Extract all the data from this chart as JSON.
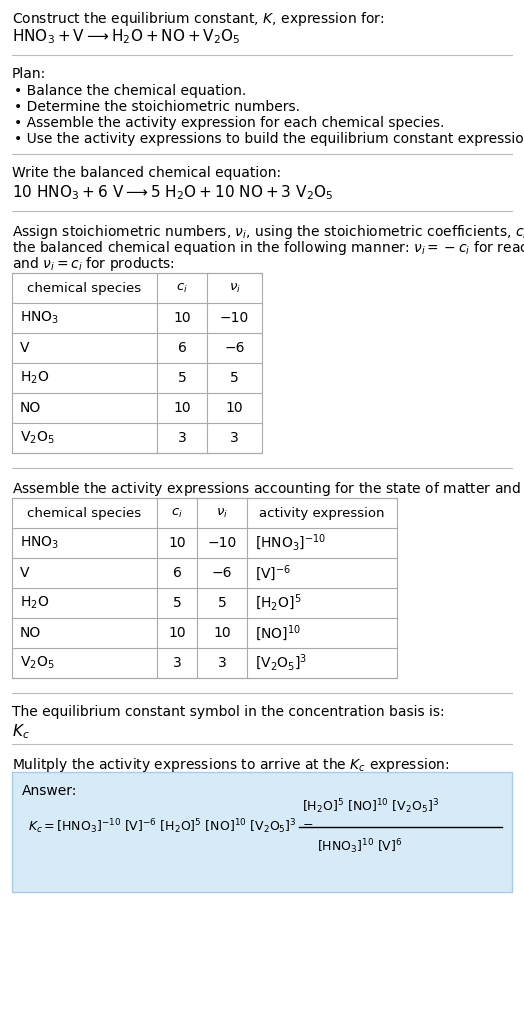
{
  "bg_color": "#ffffff",
  "table_border_color": "#aaaaaa",
  "answer_box_color": "#d6eaf8",
  "answer_box_border": "#a9cce3",
  "text_color": "#000000",
  "separator_color": "#bbbbbb",
  "title_line1": "Construct the equilibrium constant, $K$, expression for:",
  "table1_headers": [
    "chemical species",
    "$c_i$",
    "$\\nu_i$"
  ],
  "table1_rows": [
    [
      "$\\mathrm{HNO_3}$",
      "10",
      "−10"
    ],
    [
      "V",
      "6",
      "−6"
    ],
    [
      "$\\mathrm{H_2O}$",
      "5",
      "5"
    ],
    [
      "NO",
      "10",
      "10"
    ],
    [
      "$\\mathrm{V_2O_5}$",
      "3",
      "3"
    ]
  ],
  "table2_headers": [
    "chemical species",
    "$c_i$",
    "$\\nu_i$",
    "activity expression"
  ],
  "table2_rows": [
    [
      "$\\mathrm{HNO_3}$",
      "10",
      "−10",
      "$[\\mathrm{HNO_3}]^{-10}$"
    ],
    [
      "V",
      "6",
      "−6",
      "$[\\mathrm{V}]^{-6}$"
    ],
    [
      "$\\mathrm{H_2O}$",
      "5",
      "5",
      "$[\\mathrm{H_2O}]^{5}$"
    ],
    [
      "NO",
      "10",
      "10",
      "$[\\mathrm{NO}]^{10}$"
    ],
    [
      "$\\mathrm{V_2O_5}$",
      "3",
      "3",
      "$[\\mathrm{V_2O_5}]^{3}$"
    ]
  ]
}
